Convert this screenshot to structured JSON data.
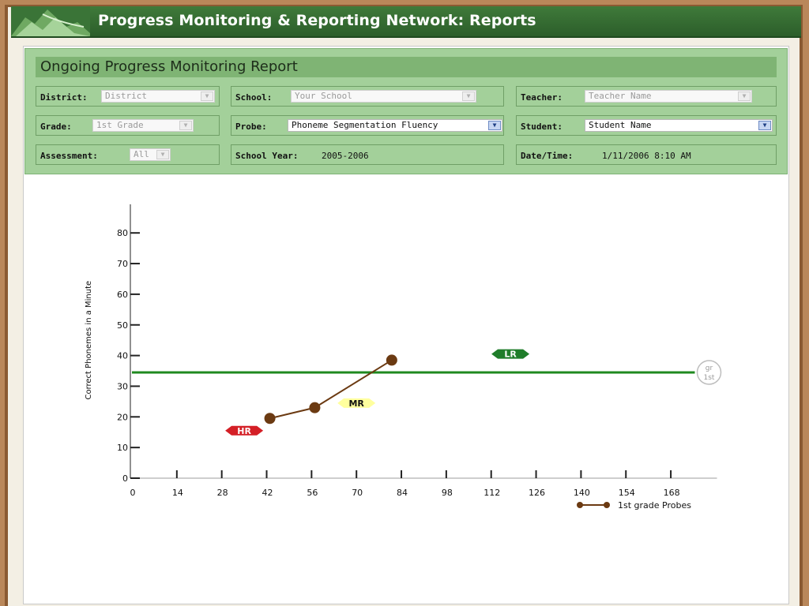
{
  "banner": {
    "title": "Progress Monitoring & Reporting Network: Reports"
  },
  "report": {
    "title": "Ongoing Progress Monitoring Report",
    "filters": {
      "district": {
        "label": "District:",
        "value": "District"
      },
      "school": {
        "label": "School:",
        "value": "Your School"
      },
      "teacher": {
        "label": "Teacher:",
        "value": "Teacher Name"
      },
      "grade": {
        "label": "Grade:",
        "value": "1st Grade"
      },
      "probe": {
        "label": "Probe:",
        "value": "Phoneme Segmentation Fluency"
      },
      "student": {
        "label": "Student:",
        "value": "Student Name"
      },
      "assessment": {
        "label": "Assessment:",
        "value": "All"
      },
      "school_year": {
        "label": "School Year:",
        "value": "2005-2006"
      },
      "date_time": {
        "label": "Date/Time:",
        "value": "1/11/2006 8:10 AM"
      }
    }
  },
  "chart_data": {
    "type": "line",
    "ylabel": "Correct Phonemes in a Minute",
    "xlabel": "",
    "xlim": [
      0,
      175
    ],
    "ylim": [
      0,
      90
    ],
    "x_ticks": [
      0,
      14,
      28,
      42,
      56,
      70,
      84,
      98,
      112,
      126,
      140,
      154,
      168
    ],
    "y_ticks": [
      0,
      10,
      20,
      30,
      40,
      50,
      60,
      70,
      80
    ],
    "series": [
      {
        "name": "1st grade Probes",
        "x": [
          43,
          57,
          81
        ],
        "y": [
          19.5,
          23,
          38.5
        ],
        "color": "#6b3a12"
      }
    ],
    "benchmark": {
      "y": 34.5,
      "color": "#1f8a1f",
      "end_label_top": "gr",
      "end_label_bottom": "1st"
    },
    "risk_labels": [
      {
        "text": "HR",
        "x": 35,
        "y": 15.5,
        "bg": "#d41f26",
        "fg": "#ffffff"
      },
      {
        "text": "MR",
        "x": 70,
        "y": 24.5,
        "bg": "#ffff9e",
        "fg": "#111111"
      },
      {
        "text": "LR",
        "x": 118,
        "y": 40.5,
        "bg": "#1f7d2a",
        "fg": "#ffffff"
      }
    ],
    "legend": {
      "position": "bottom-right"
    },
    "colors": {
      "axis": "#222222",
      "tick_text": "#111111"
    }
  }
}
